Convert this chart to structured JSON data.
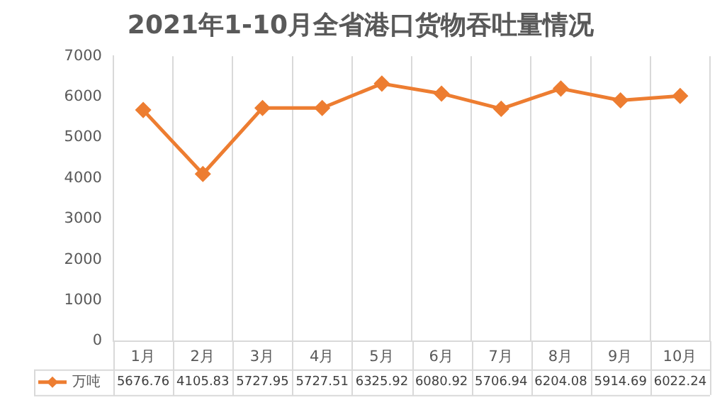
{
  "chart_data": {
    "type": "line",
    "title": "2021年1-10月全省港口货物吞吐量情况",
    "categories": [
      "1月",
      "2月",
      "3月",
      "4月",
      "5月",
      "6月",
      "7月",
      "8月",
      "9月",
      "10月"
    ],
    "series": [
      {
        "name": "万吨",
        "color": "#ed7d31",
        "values": [
          5676.76,
          4105.83,
          5727.95,
          5727.51,
          6325.92,
          6080.92,
          5706.94,
          6204.08,
          5914.69,
          6022.24
        ]
      }
    ],
    "ylim": [
      0,
      7000
    ],
    "yticks": [
      0,
      1000,
      2000,
      3000,
      4000,
      5000,
      6000,
      7000
    ],
    "grid": "x",
    "legend": "bottom",
    "marker": "diamond",
    "line_style": "solid",
    "data_labels": true
  }
}
